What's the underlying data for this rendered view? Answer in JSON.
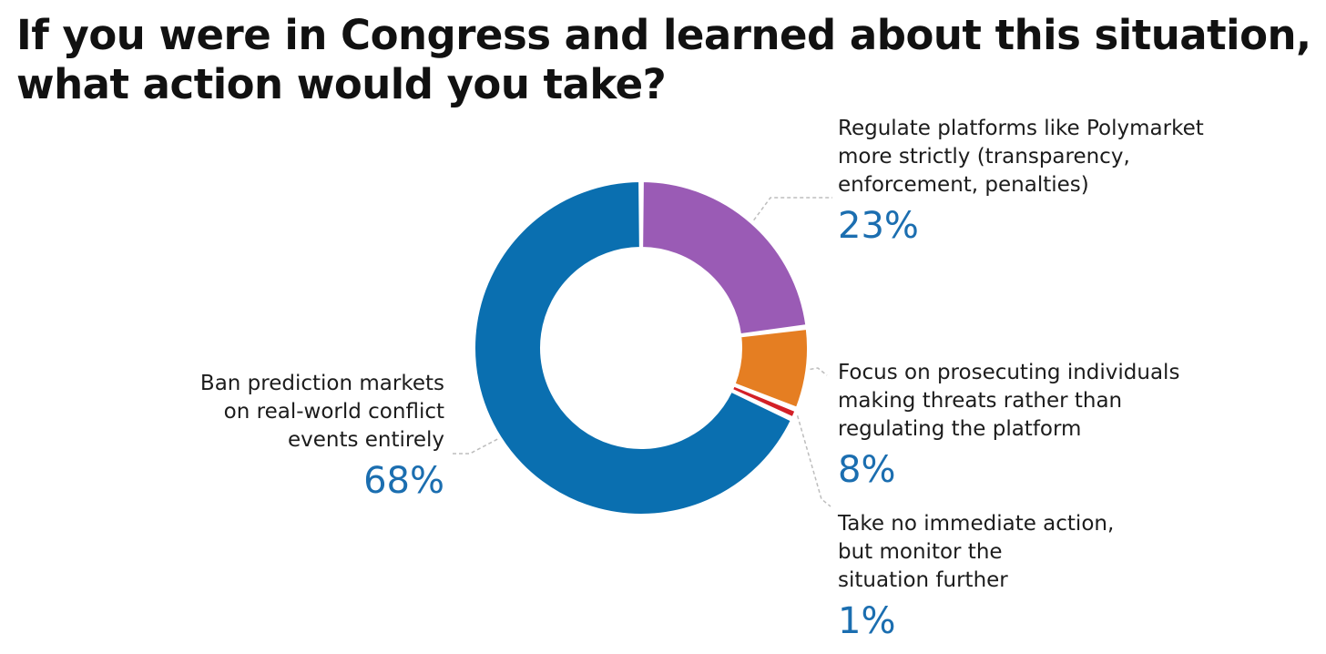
{
  "title_lines": [
    "If you were in Congress and learned about this situation,",
    "what action would you take?"
  ],
  "colors": {
    "ban": "#0a6fb0",
    "regulate": "#9a5bb5",
    "prosecute": "#e57e22",
    "no_action": "#d32027",
    "percent_text": "#1b6eb0",
    "leader": "#bdbdbd"
  },
  "chart_data": {
    "type": "pie",
    "subtype": "donut",
    "title": "If you were in Congress and learned about this situation, what action would you take?",
    "slices": [
      {
        "key": "regulate",
        "label_lines": [
          "Regulate platforms like Polymarket",
          "more strictly (transparency,",
          "enforcement, penalties)"
        ],
        "value": 23,
        "percent_label": "23%",
        "color": "#9a5bb5"
      },
      {
        "key": "prosecute",
        "label_lines": [
          "Focus on prosecuting individuals",
          "making threats rather than",
          "regulating the platform"
        ],
        "value": 8,
        "percent_label": "8%",
        "color": "#e57e22"
      },
      {
        "key": "no_action",
        "label_lines": [
          "Take no immediate action,",
          "but monitor the",
          "situation further"
        ],
        "value": 1,
        "percent_label": "1%",
        "color": "#d32027"
      },
      {
        "key": "ban",
        "label_lines": [
          "Ban prediction markets",
          "on real-world conflict",
          "events entirely"
        ],
        "value": 68,
        "percent_label": "68%",
        "color": "#0a6fb0"
      }
    ],
    "start_angle_deg": 0,
    "direction": "clockwise",
    "legend": "none"
  }
}
